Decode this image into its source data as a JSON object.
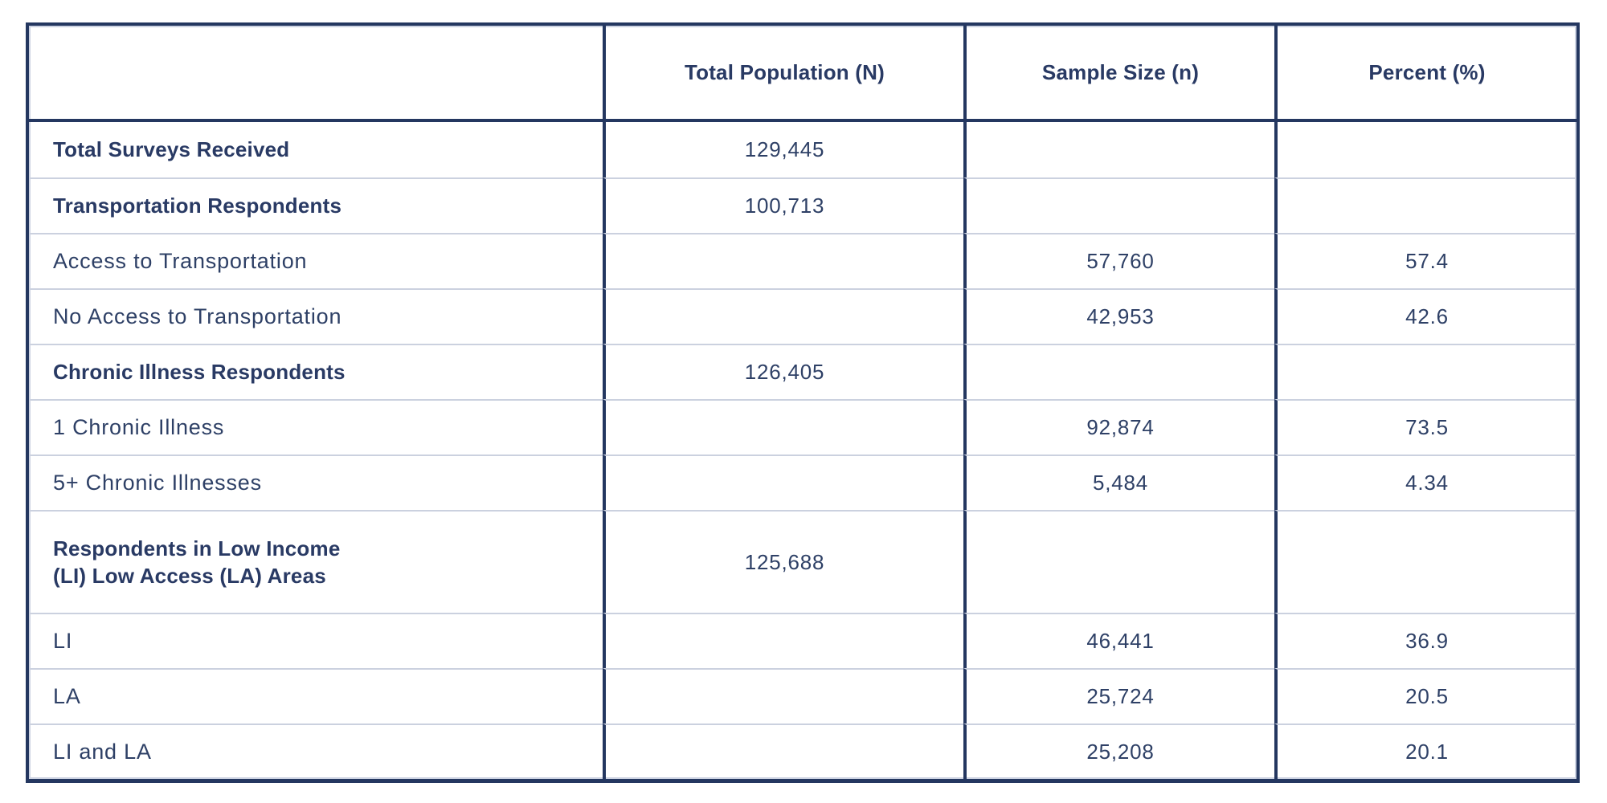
{
  "colors": {
    "navy_border": "#243760",
    "light_row_separator": "#cbd1df",
    "bold_text": "#293a64",
    "regular_text": "#2e4066",
    "background": "#ffffff"
  },
  "chart_data": {
    "type": "table",
    "title": "",
    "columns": [
      "",
      "Total Population (N)",
      "Sample Size (n)",
      "Percent (%)"
    ],
    "rows": [
      {
        "label": "Total Surveys Received",
        "bold": true,
        "tall": false,
        "total_population": "129,445",
        "sample_size": "",
        "percent": ""
      },
      {
        "label": "Transportation Respondents",
        "bold": true,
        "tall": false,
        "total_population": "100,713",
        "sample_size": "",
        "percent": ""
      },
      {
        "label": "Access to Transportation",
        "bold": false,
        "tall": false,
        "total_population": "",
        "sample_size": "57,760",
        "percent": "57.4"
      },
      {
        "label": "No Access to Transportation",
        "bold": false,
        "tall": false,
        "total_population": "",
        "sample_size": "42,953",
        "percent": "42.6"
      },
      {
        "label": "Chronic Illness Respondents",
        "bold": true,
        "tall": false,
        "total_population": "126,405",
        "sample_size": "",
        "percent": ""
      },
      {
        "label": "1 Chronic Illness",
        "bold": false,
        "tall": false,
        "total_population": "",
        "sample_size": "92,874",
        "percent": "73.5"
      },
      {
        "label": "5+ Chronic Illnesses",
        "bold": false,
        "tall": false,
        "total_population": "",
        "sample_size": "5,484",
        "percent": "4.34"
      },
      {
        "label": "Respondents in Low Income\n(LI) Low Access (LA) Areas",
        "bold": true,
        "tall": true,
        "total_population": "125,688",
        "sample_size": "",
        "percent": ""
      },
      {
        "label": "LI",
        "bold": false,
        "tall": false,
        "total_population": "",
        "sample_size": "46,441",
        "percent": "36.9"
      },
      {
        "label": "LA",
        "bold": false,
        "tall": false,
        "total_population": "",
        "sample_size": "25,724",
        "percent": "20.5"
      },
      {
        "label": "LI and LA",
        "bold": false,
        "tall": false,
        "total_population": "",
        "sample_size": "25,208",
        "percent": "20.1"
      }
    ]
  }
}
